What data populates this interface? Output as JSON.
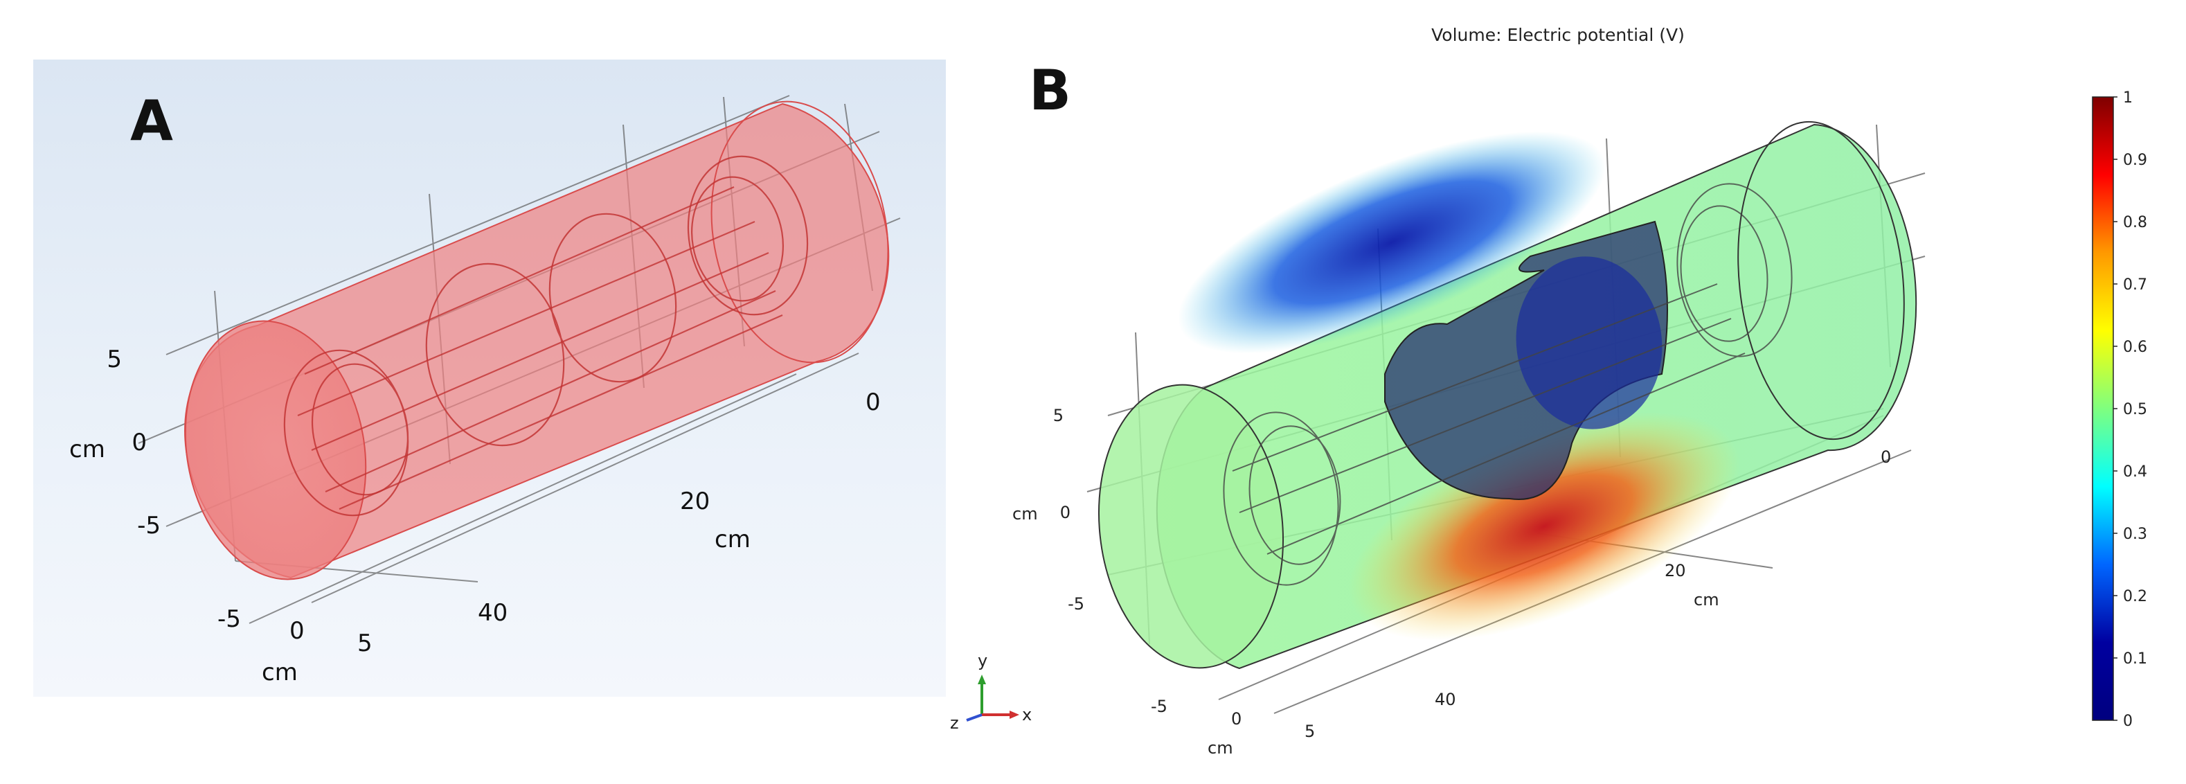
{
  "panel_a": {
    "label": "A",
    "axes": {
      "vertical_ticks": [
        "5",
        "0",
        "-5"
      ],
      "vertical_unit": "cm",
      "horizontal_ticks": [
        "0",
        "20",
        "40"
      ],
      "horizontal_unit": "cm",
      "depth_ticks": [
        "-5",
        "0",
        "5"
      ],
      "depth_unit": "cm"
    }
  },
  "panel_b": {
    "label": "B",
    "title": "Volume: Electric potential (V)",
    "axes": {
      "vertical_ticks": [
        "5",
        "0",
        "-5"
      ],
      "vertical_unit": "cm",
      "horizontal_ticks": [
        "0",
        "20",
        "40"
      ],
      "horizontal_unit": "cm",
      "depth_ticks": [
        "-5",
        "0",
        "5"
      ],
      "depth_unit": "cm"
    },
    "triad": {
      "x": "x",
      "y": "y",
      "z": "z"
    },
    "colorbar": {
      "ticks": [
        "1",
        "0.9",
        "0.8",
        "0.7",
        "0.6",
        "0.5",
        "0.4",
        "0.3",
        "0.2",
        "0.1",
        "0"
      ],
      "colors": [
        "#7f0000",
        "#ff0000",
        "#ff9900",
        "#ffff00",
        "#7fff7f",
        "#00ffff",
        "#0066ff",
        "#0000a0",
        "#00007f"
      ]
    }
  }
}
